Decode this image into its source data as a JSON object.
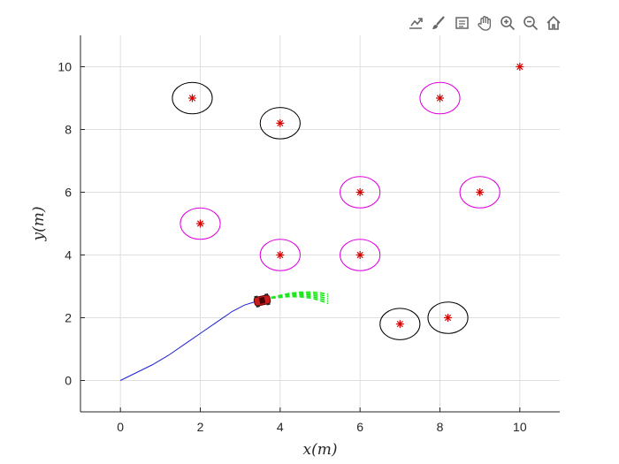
{
  "toolbar": {
    "icons": [
      "export-icon",
      "brush-icon",
      "data-tips-icon",
      "pan-icon",
      "zoom-in-icon",
      "zoom-out-icon",
      "home-icon"
    ]
  },
  "colors": {
    "path": "#1f1fcc",
    "prediction": "#1ee61e",
    "obstacle_black": "#000000",
    "obstacle_magenta": "#e000e0",
    "marker": "#d40000",
    "car": "#c81e1e",
    "grid": "#dfdfdf",
    "axis": "#262626"
  },
  "chart_data": {
    "type": "scatter",
    "xlabel": "x(m)",
    "ylabel": "y(m)",
    "xlim": [
      -1,
      11
    ],
    "ylim": [
      -1,
      11
    ],
    "xticks": [
      0,
      2,
      4,
      6,
      8,
      10
    ],
    "yticks": [
      0,
      2,
      4,
      6,
      8,
      10
    ],
    "xtick_labels": [
      "0",
      "2",
      "4",
      "6",
      "8",
      "10"
    ],
    "ytick_labels": [
      "0",
      "2",
      "4",
      "6",
      "8",
      "10"
    ],
    "grid": true,
    "path": {
      "x": [
        0,
        0.4,
        0.8,
        1.2,
        1.6,
        2.0,
        2.4,
        2.8,
        3.1,
        3.4,
        3.6
      ],
      "y": [
        0,
        0.25,
        0.5,
        0.8,
        1.15,
        1.5,
        1.85,
        2.2,
        2.4,
        2.52,
        2.58
      ]
    },
    "prediction": {
      "x": [
        3.6,
        3.9,
        4.2,
        4.5,
        4.8,
        5.0,
        5.2
      ],
      "y": [
        2.6,
        2.66,
        2.72,
        2.74,
        2.72,
        2.67,
        2.6
      ]
    },
    "car": {
      "x": 3.55,
      "y": 2.55
    },
    "obstacles_black": [
      {
        "x": 1.8,
        "y": 9.0
      },
      {
        "x": 4.0,
        "y": 8.2
      },
      {
        "x": 7.0,
        "y": 1.8
      },
      {
        "x": 8.2,
        "y": 2.0
      }
    ],
    "obstacles_magenta": [
      {
        "x": 8.0,
        "y": 9.0
      },
      {
        "x": 6.0,
        "y": 6.0
      },
      {
        "x": 9.0,
        "y": 6.0
      },
      {
        "x": 2.0,
        "y": 5.0
      },
      {
        "x": 4.0,
        "y": 4.0
      },
      {
        "x": 6.0,
        "y": 4.0
      }
    ],
    "goal": {
      "x": 10.0,
      "y": 10.0
    },
    "obstacle_radius": 0.5
  }
}
